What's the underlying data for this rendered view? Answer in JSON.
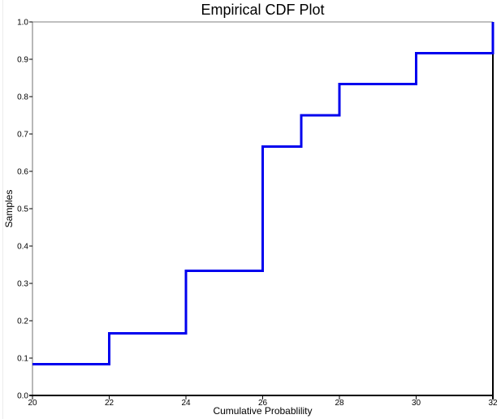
{
  "chart": {
    "title": "Empirical CDF Plot",
    "xlabel": "Cumulative Probablility",
    "ylabel": "Samples"
  },
  "chart_data": {
    "type": "line",
    "subtype": "ecdf-step",
    "title": "Empirical CDF Plot",
    "xlabel": "Cumulative Probablility",
    "ylabel": "Samples",
    "xlim": [
      20,
      32
    ],
    "ylim": [
      0.0,
      1.0
    ],
    "x_ticks": [
      20,
      22,
      24,
      26,
      28,
      30,
      32
    ],
    "y_ticks": [
      "0.0",
      "0.1",
      "0.2",
      "0.3",
      "0.4",
      "0.5",
      "0.6",
      "0.7",
      "0.8",
      "0.9",
      "1.0"
    ],
    "grid": false,
    "legend": "none",
    "n_samples": 12,
    "samples": [
      20,
      22,
      24,
      24,
      26,
      26,
      26,
      26,
      27,
      28,
      30,
      32
    ],
    "points": [
      [
        20,
        0.0833
      ],
      [
        22,
        0.0833
      ],
      [
        22,
        0.1667
      ],
      [
        24,
        0.1667
      ],
      [
        24,
        0.3333
      ],
      [
        26,
        0.3333
      ],
      [
        26,
        0.6667
      ],
      [
        27,
        0.6667
      ],
      [
        27,
        0.75
      ],
      [
        28,
        0.75
      ],
      [
        28,
        0.8333
      ],
      [
        30,
        0.8333
      ],
      [
        30,
        0.9167
      ],
      [
        32,
        0.9167
      ],
      [
        32,
        1.0
      ]
    ]
  },
  "colors": {
    "line": "#0000EE",
    "axis": "#000000",
    "frame_top": "#808080",
    "frame_left": "#707070",
    "tick": "#000000",
    "tick_label": "#000000",
    "title_text": "#000000",
    "background": "#ffffff"
  },
  "line_style": {
    "width": 3
  }
}
